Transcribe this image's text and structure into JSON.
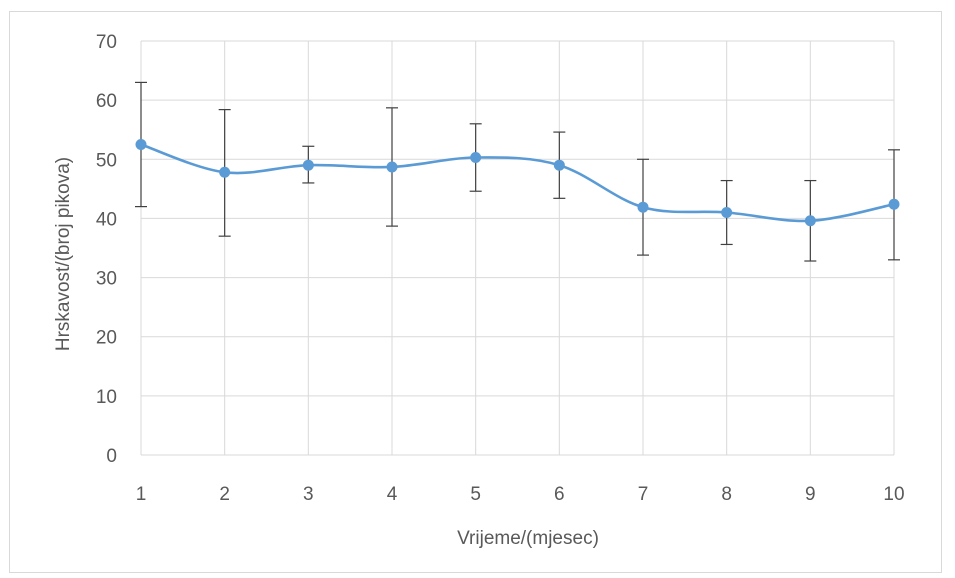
{
  "chart_data": {
    "type": "line",
    "title": "",
    "xlabel": "Vrijeme/(mjesec)",
    "ylabel": "Hrskavost/(broj pikova)",
    "x": [
      1,
      2,
      3,
      4,
      5,
      6,
      7,
      8,
      9,
      10
    ],
    "series": [
      {
        "name": "",
        "values": [
          52.5,
          47.8,
          49.0,
          48.7,
          50.3,
          49.0,
          41.9,
          41.0,
          39.6,
          42.4
        ],
        "error_low": [
          42.0,
          37.0,
          46.0,
          38.7,
          44.6,
          43.4,
          33.8,
          35.6,
          32.8,
          33.0
        ],
        "error_high": [
          63.0,
          58.4,
          52.2,
          58.7,
          56.0,
          54.6,
          50.0,
          46.4,
          46.4,
          51.6
        ]
      }
    ],
    "xlim": [
      1,
      10
    ],
    "ylim": [
      0,
      70
    ],
    "yticks": [
      0,
      10,
      20,
      30,
      40,
      50,
      60,
      70
    ],
    "xticks": [
      1,
      2,
      3,
      4,
      5,
      6,
      7,
      8,
      9,
      10
    ],
    "grid": true,
    "smooth": true,
    "legend": "none",
    "colors": {
      "series": "#5b9bd5",
      "marker": "#5b9bd5",
      "error_bar": "#404040",
      "grid": "#d9d9d9",
      "text": "#595959"
    }
  }
}
